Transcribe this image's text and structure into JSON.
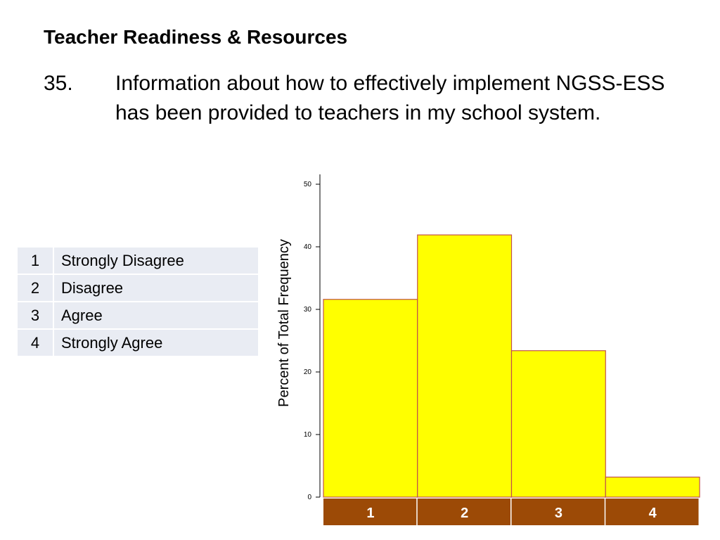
{
  "header": {
    "title": "Teacher Readiness & Resources"
  },
  "question": {
    "number": "35.",
    "text": "Information about how to effectively implement NGSS-ESS has been provided to teachers in my school system."
  },
  "legend": {
    "rows": [
      {
        "code": "1",
        "label": "Strongly Disagree"
      },
      {
        "code": "2",
        "label": "Disagree"
      },
      {
        "code": "3",
        "label": "Agree"
      },
      {
        "code": "4",
        "label": "Strongly Agree"
      }
    ]
  },
  "colors": {
    "bar_fill": "#ffff00",
    "bar_stroke": "#c0504d",
    "category_box": "#9c4a06",
    "category_text": "#ffffff"
  },
  "chart_data": {
    "type": "bar",
    "title": "",
    "categories": [
      "1",
      "2",
      "3",
      "4"
    ],
    "values": [
      31.6,
      41.9,
      23.4,
      3.2
    ],
    "xlabel": "",
    "ylabel": "Percent of Total Frequency",
    "ylim": [
      0,
      50
    ],
    "yticks": [
      0,
      10,
      20,
      30,
      40,
      50
    ],
    "grid": false,
    "legend": "none"
  }
}
